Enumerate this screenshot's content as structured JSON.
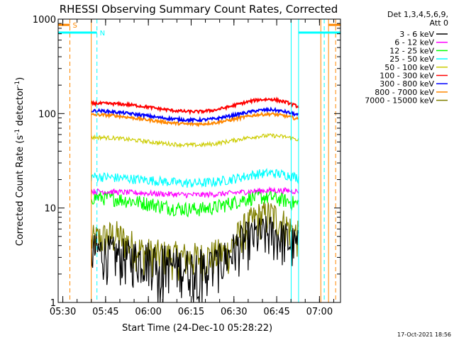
{
  "chart_data": {
    "type": "line",
    "title": "RHESSI Observing Summary Count Rates, Corrected",
    "xlabel": "Start Time (24-Dec-10 05:28:22)",
    "ylabel": "Corrected Count Rate (s",
    "ylabel_sup": "-1",
    "ylabel_tail": " detector",
    "ylabel_close": ")",
    "x_range_minutes": [
      0,
      99
    ],
    "x_ticks": [
      {
        "label": "05:30",
        "minute": 1.63
      },
      {
        "label": "05:45",
        "minute": 16.63
      },
      {
        "label": "06:00",
        "minute": 31.63
      },
      {
        "label": "06:15",
        "minute": 46.63
      },
      {
        "label": "06:30",
        "minute": 61.63
      },
      {
        "label": "06:45",
        "minute": 76.63
      },
      {
        "label": "07:00",
        "minute": 91.63
      }
    ],
    "y_scale": "log",
    "ylim": [
      1,
      1000
    ],
    "y_ticks": [
      {
        "label": "1",
        "value": 1
      },
      {
        "label": "10",
        "value": 10
      },
      {
        "label": "100",
        "value": 100
      },
      {
        "label": "1000",
        "value": 1000
      }
    ],
    "legend_header": [
      "Det 1,3,4,5,6,9,",
      "Att 0"
    ],
    "legend_position": "right",
    "data_window_minutes": [
      11.6,
      84.3
    ],
    "series": [
      {
        "name": "3 - 6 keV",
        "color": "#000000",
        "x": [
          11.6,
          15,
          20,
          25,
          30,
          35,
          40,
          45,
          50,
          55,
          60,
          65,
          70,
          75,
          80,
          84.3
        ],
        "y": [
          3.5,
          3.5,
          3.2,
          3,
          3,
          2.8,
          2.5,
          2.4,
          2.4,
          2.5,
          3.2,
          4.5,
          5.2,
          5.5,
          4.6,
          3.8
        ]
      },
      {
        "name": "6 - 12 keV",
        "color": "#ff00ff",
        "x": [
          11.6,
          15,
          20,
          25,
          30,
          35,
          40,
          45,
          50,
          55,
          60,
          65,
          70,
          75,
          80,
          84.3
        ],
        "y": [
          15,
          15,
          14.8,
          14.6,
          14.4,
          14.2,
          14,
          13.8,
          13.8,
          14,
          14.3,
          14.8,
          15.2,
          15.4,
          15.3,
          15
        ]
      },
      {
        "name": "12 - 25 keV",
        "color": "#00ff00",
        "x": [
          11.6,
          15,
          20,
          25,
          30,
          35,
          40,
          45,
          50,
          55,
          60,
          65,
          70,
          75,
          80,
          84.3
        ],
        "y": [
          13,
          13,
          12.6,
          12,
          11.4,
          10.7,
          10.1,
          9.8,
          9.8,
          10.2,
          11.2,
          12.4,
          13.2,
          13,
          12,
          11
        ]
      },
      {
        "name": "25 - 50 keV",
        "color": "#00ffff",
        "x": [
          11.6,
          15,
          20,
          25,
          30,
          35,
          40,
          45,
          50,
          55,
          60,
          65,
          70,
          75,
          80,
          84.3
        ],
        "y": [
          21.5,
          21.5,
          21,
          20.5,
          20,
          19.4,
          18.8,
          18.4,
          18.4,
          19,
          20,
          21.5,
          23,
          23.5,
          22.5,
          21
        ]
      },
      {
        "name": "50 - 100 keV",
        "color": "#cccc00",
        "x": [
          11.6,
          15,
          20,
          25,
          30,
          35,
          40,
          45,
          50,
          55,
          60,
          65,
          70,
          75,
          80,
          84.3
        ],
        "y": [
          56,
          56,
          55,
          53,
          51,
          49,
          47.5,
          46.5,
          46.5,
          48,
          51,
          54.5,
          57.5,
          58.5,
          56.5,
          53
        ]
      },
      {
        "name": "100 - 300 keV",
        "color": "#ff0000",
        "x": [
          11.6,
          15,
          20,
          25,
          30,
          35,
          40,
          45,
          50,
          55,
          60,
          65,
          70,
          75,
          80,
          84.3
        ],
        "y": [
          128,
          128,
          127,
          124,
          119,
          113,
          108,
          105,
          105,
          109,
          118,
          130,
          140,
          142,
          132,
          118
        ]
      },
      {
        "name": "300 - 800 keV",
        "color": "#0000ff",
        "x": [
          11.6,
          15,
          20,
          25,
          30,
          35,
          40,
          45,
          50,
          55,
          60,
          65,
          70,
          75,
          80,
          84.3
        ],
        "y": [
          107,
          107,
          104,
          100,
          96,
          91,
          88,
          85.5,
          85.5,
          88,
          94,
          101,
          108,
          110,
          104,
          96
        ]
      },
      {
        "name": "800 - 7000 keV",
        "color": "#ff8800",
        "x": [
          11.6,
          15,
          20,
          25,
          30,
          35,
          40,
          45,
          50,
          55,
          60,
          65,
          70,
          75,
          80,
          84.3
        ],
        "y": [
          97,
          97,
          95,
          91,
          87,
          83,
          79.5,
          77.5,
          77.5,
          80,
          85,
          91.5,
          97.5,
          99,
          94,
          87
        ]
      },
      {
        "name": "7000 - 15000 keV",
        "color": "#808000",
        "x": [
          11.6,
          15,
          20,
          25,
          30,
          35,
          40,
          45,
          50,
          55,
          60,
          65,
          70,
          75,
          80,
          84.3
        ],
        "y": [
          4.5,
          4.8,
          5.2,
          4.2,
          3.4,
          3.2,
          3.1,
          3,
          3,
          3.2,
          3.5,
          6,
          8,
          8.5,
          6.5,
          5
        ]
      }
    ],
    "flags": [
      {
        "label": "S",
        "color": "#ff8800",
        "level": 870,
        "start": 0,
        "end": 4.1,
        "mark": "4.1",
        "segments": [
          [
            0,
            4.1
          ]
        ]
      },
      {
        "label": "N",
        "color": "#00ffff",
        "level": 720,
        "start": 0,
        "end": 13.6,
        "segments": [
          [
            0,
            13.6
          ],
          [
            84.2,
            99
          ]
        ]
      },
      {
        "label": "",
        "color": "#ff8800",
        "level": 870,
        "start": 94.8,
        "end": 99,
        "segments": [
          [
            94.8,
            99
          ]
        ]
      }
    ],
    "vertical_markers": [
      {
        "minute": 4.1,
        "color": "#ff8800",
        "style": "dashed"
      },
      {
        "minute": 11.6,
        "color": "#ff8800",
        "style": "solid"
      },
      {
        "minute": 13.6,
        "color": "#00ffff",
        "style": "dashed"
      },
      {
        "minute": 81.7,
        "color": "#00ffff",
        "style": "solid"
      },
      {
        "minute": 84.3,
        "color": "#00ffff",
        "style": "solid"
      },
      {
        "minute": 92.1,
        "color": "#ff8800",
        "style": "solid"
      },
      {
        "minute": 93.3,
        "color": "#00ffff",
        "style": "dashed"
      },
      {
        "minute": 94.8,
        "color": "#ff8800",
        "style": "solid"
      },
      {
        "minute": 97.3,
        "color": "#ff8800",
        "style": "dashed"
      }
    ]
  },
  "footer_timestamp": "17-Oct-2021 18:56"
}
